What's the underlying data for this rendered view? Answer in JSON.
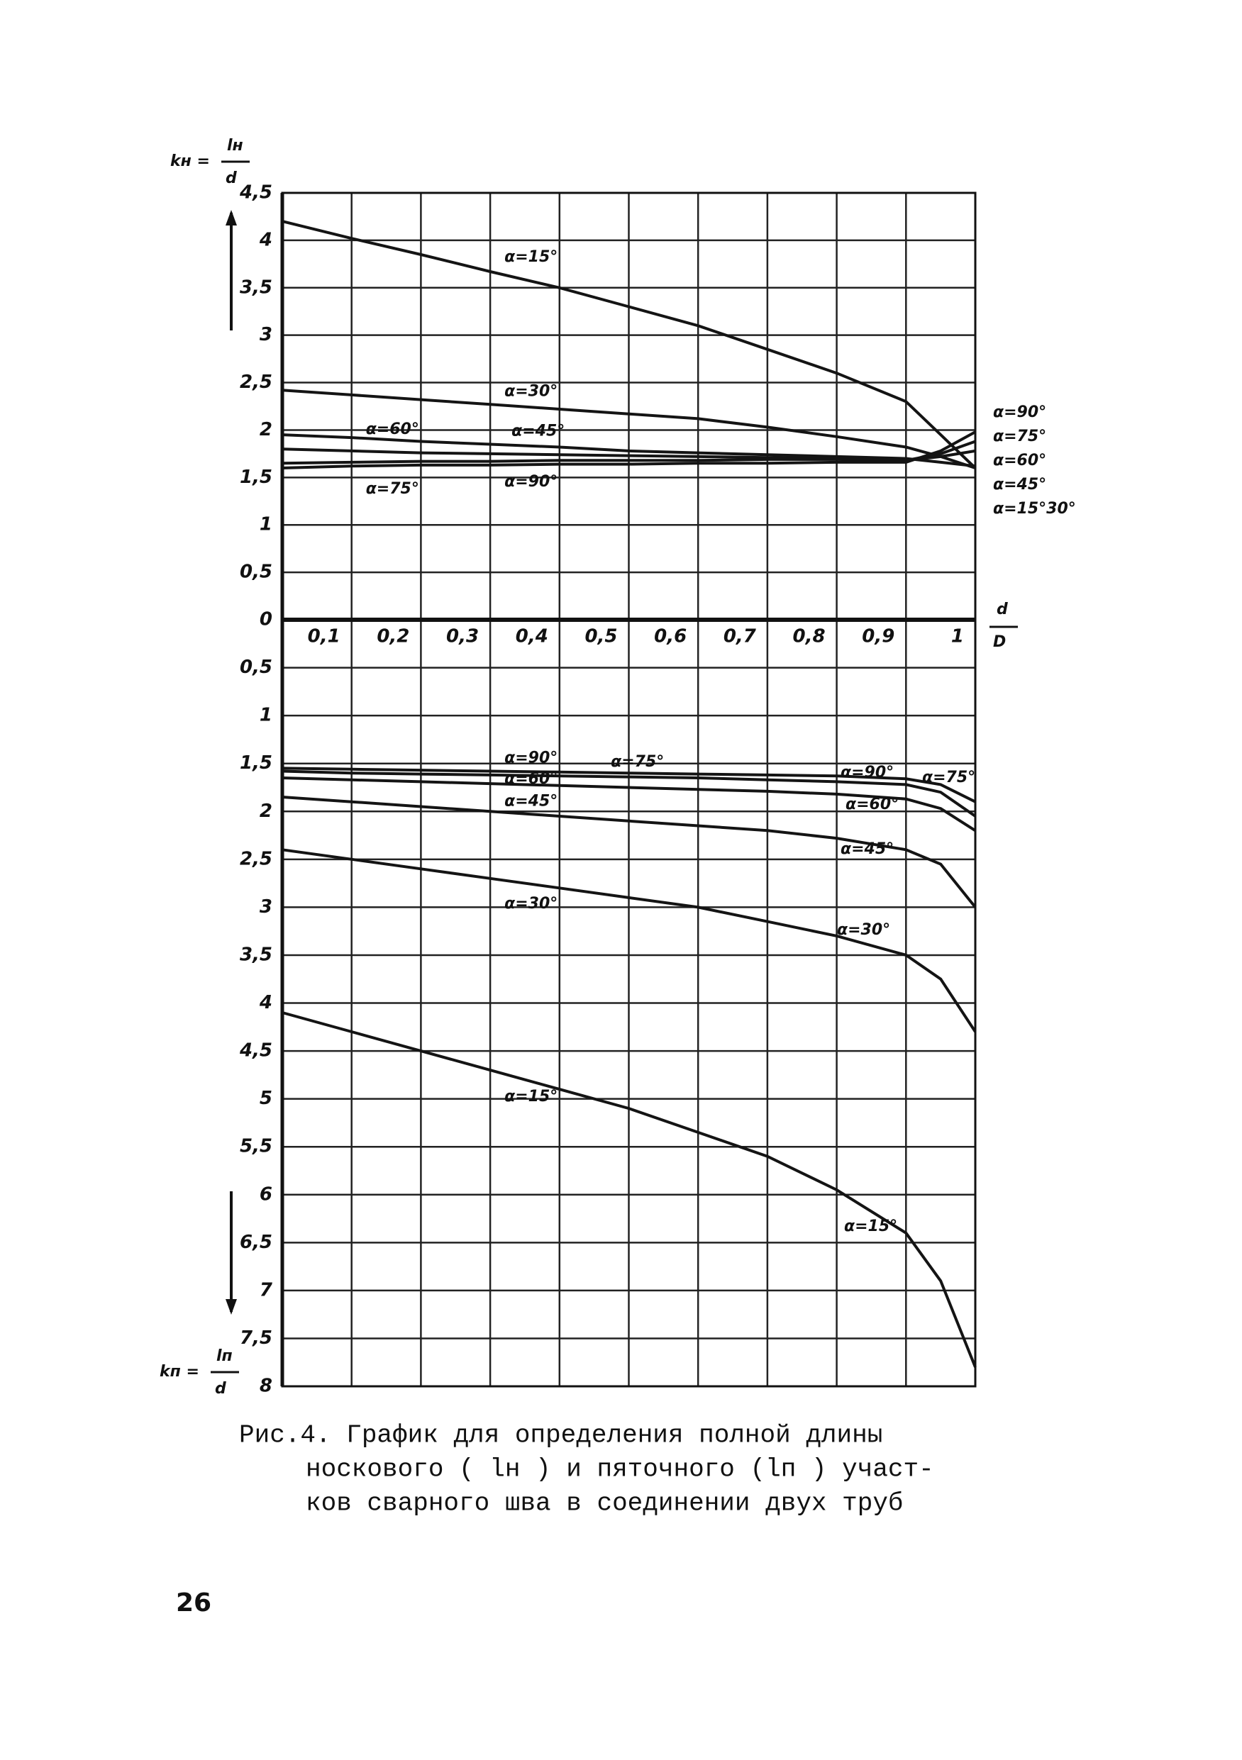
{
  "chart_data": [
    {
      "type": "line",
      "y_label_symbol": "kн =",
      "y_label_numerator": "lн",
      "y_label_denominator": "d",
      "x_label_numerator": "d",
      "x_label_denominator": "D",
      "color": "#141414",
      "grid": true,
      "xlim": [
        0,
        1
      ],
      "xticks": [
        {
          "value": 0.1,
          "label": "0,1"
        },
        {
          "value": 0.2,
          "label": "0,2"
        },
        {
          "value": 0.3,
          "label": "0,3"
        },
        {
          "value": 0.4,
          "label": "0,4"
        },
        {
          "value": 0.5,
          "label": "0,5"
        },
        {
          "value": 0.6,
          "label": "0,6"
        },
        {
          "value": 0.7,
          "label": "0,7"
        },
        {
          "value": 0.8,
          "label": "0,8"
        },
        {
          "value": 0.9,
          "label": "0,9"
        },
        1
      ],
      "ylim": [
        0,
        4.5
      ],
      "yticks": [
        {
          "value": 4.5,
          "label": "4,5"
        },
        4,
        {
          "value": 3.5,
          "label": "3,5"
        },
        3,
        {
          "value": 2.5,
          "label": "2,5"
        },
        2,
        {
          "value": 1.5,
          "label": "1,5"
        },
        1,
        {
          "value": 0.5,
          "label": "0,5"
        },
        0
      ],
      "x": [
        0,
        0.1,
        0.2,
        0.3,
        0.4,
        0.5,
        0.6,
        0.7,
        0.8,
        0.9,
        0.95,
        1
      ],
      "series": [
        {
          "name": "α=15°",
          "values": [
            4.2,
            4.02,
            3.85,
            3.67,
            3.5,
            3.3,
            3.1,
            2.85,
            2.6,
            2.3,
            1.95,
            1.6
          ]
        },
        {
          "name": "α=30°",
          "values": [
            2.42,
            2.37,
            2.32,
            2.27,
            2.22,
            2.17,
            2.12,
            2.03,
            1.93,
            1.82,
            1.72,
            1.6
          ]
        },
        {
          "name": "α=45°",
          "values": [
            1.95,
            1.92,
            1.88,
            1.85,
            1.82,
            1.78,
            1.76,
            1.74,
            1.72,
            1.7,
            1.66,
            1.62
          ]
        },
        {
          "name": "α=60°",
          "values": [
            1.8,
            1.78,
            1.76,
            1.75,
            1.74,
            1.73,
            1.72,
            1.71,
            1.7,
            1.68,
            1.72,
            1.78
          ]
        },
        {
          "name": "α=75°",
          "values": [
            1.65,
            1.66,
            1.67,
            1.67,
            1.68,
            1.68,
            1.68,
            1.69,
            1.69,
            1.68,
            1.75,
            1.88
          ]
        },
        {
          "name": "α=90°",
          "values": [
            1.6,
            1.62,
            1.63,
            1.63,
            1.64,
            1.64,
            1.65,
            1.65,
            1.66,
            1.66,
            1.78,
            1.98
          ]
        }
      ],
      "annotations": [
        "α=90°",
        "α=75°",
        "α=60°",
        "α=45°",
        "α=15°30°"
      ]
    },
    {
      "type": "line",
      "y_label_symbol": "kп =",
      "y_label_numerator": "lп",
      "y_label_denominator": "d",
      "color": "#141414",
      "grid": true,
      "xlim": [
        0,
        1
      ],
      "ylim": [
        0,
        8
      ],
      "yticks": [
        {
          "value": 0.5,
          "label": "0,5"
        },
        1,
        {
          "value": 1.5,
          "label": "1,5"
        },
        2,
        {
          "value": 2.5,
          "label": "2,5"
        },
        3,
        {
          "value": 3.5,
          "label": "3,5"
        },
        4,
        {
          "value": 4.5,
          "label": "4,5"
        },
        5,
        {
          "value": 5.5,
          "label": "5,5"
        },
        6,
        {
          "value": 6.5,
          "label": "6,5"
        },
        7,
        {
          "value": 7.5,
          "label": "7,5"
        },
        8
      ],
      "x": [
        0,
        0.1,
        0.2,
        0.3,
        0.4,
        0.5,
        0.6,
        0.7,
        0.8,
        0.9,
        0.95,
        1
      ],
      "series": [
        {
          "name": "α=90°",
          "values": [
            1.55,
            1.56,
            1.57,
            1.58,
            1.59,
            1.6,
            1.61,
            1.62,
            1.63,
            1.66,
            1.72,
            1.9
          ]
        },
        {
          "name": "α=75°",
          "values": [
            1.58,
            1.6,
            1.61,
            1.62,
            1.63,
            1.64,
            1.65,
            1.67,
            1.69,
            1.72,
            1.8,
            2.05
          ]
        },
        {
          "name": "α=60°",
          "values": [
            1.65,
            1.67,
            1.69,
            1.71,
            1.73,
            1.75,
            1.77,
            1.79,
            1.82,
            1.87,
            1.97,
            2.2
          ]
        },
        {
          "name": "α=45°",
          "values": [
            1.85,
            1.9,
            1.95,
            2.0,
            2.05,
            2.1,
            2.15,
            2.2,
            2.28,
            2.4,
            2.55,
            3.0
          ]
        },
        {
          "name": "α=30°",
          "values": [
            2.4,
            2.5,
            2.6,
            2.7,
            2.8,
            2.9,
            3.0,
            3.15,
            3.3,
            3.5,
            3.75,
            4.3
          ]
        },
        {
          "name": "α=15°",
          "values": [
            4.1,
            4.3,
            4.5,
            4.7,
            4.9,
            5.1,
            5.35,
            5.6,
            5.95,
            6.4,
            6.9,
            7.8
          ]
        }
      ],
      "annotations": [
        "α=90°",
        "α=75°",
        "α=60°",
        "α=45°",
        "α=30°",
        "α=15°"
      ]
    }
  ],
  "caption": [
    "Рис.4. График для определения полной длины",
    "носкового ( lн ) и пяточного (lп ) участ-",
    "ков сварного шва в соединении двух труб"
  ],
  "page_number": "26"
}
